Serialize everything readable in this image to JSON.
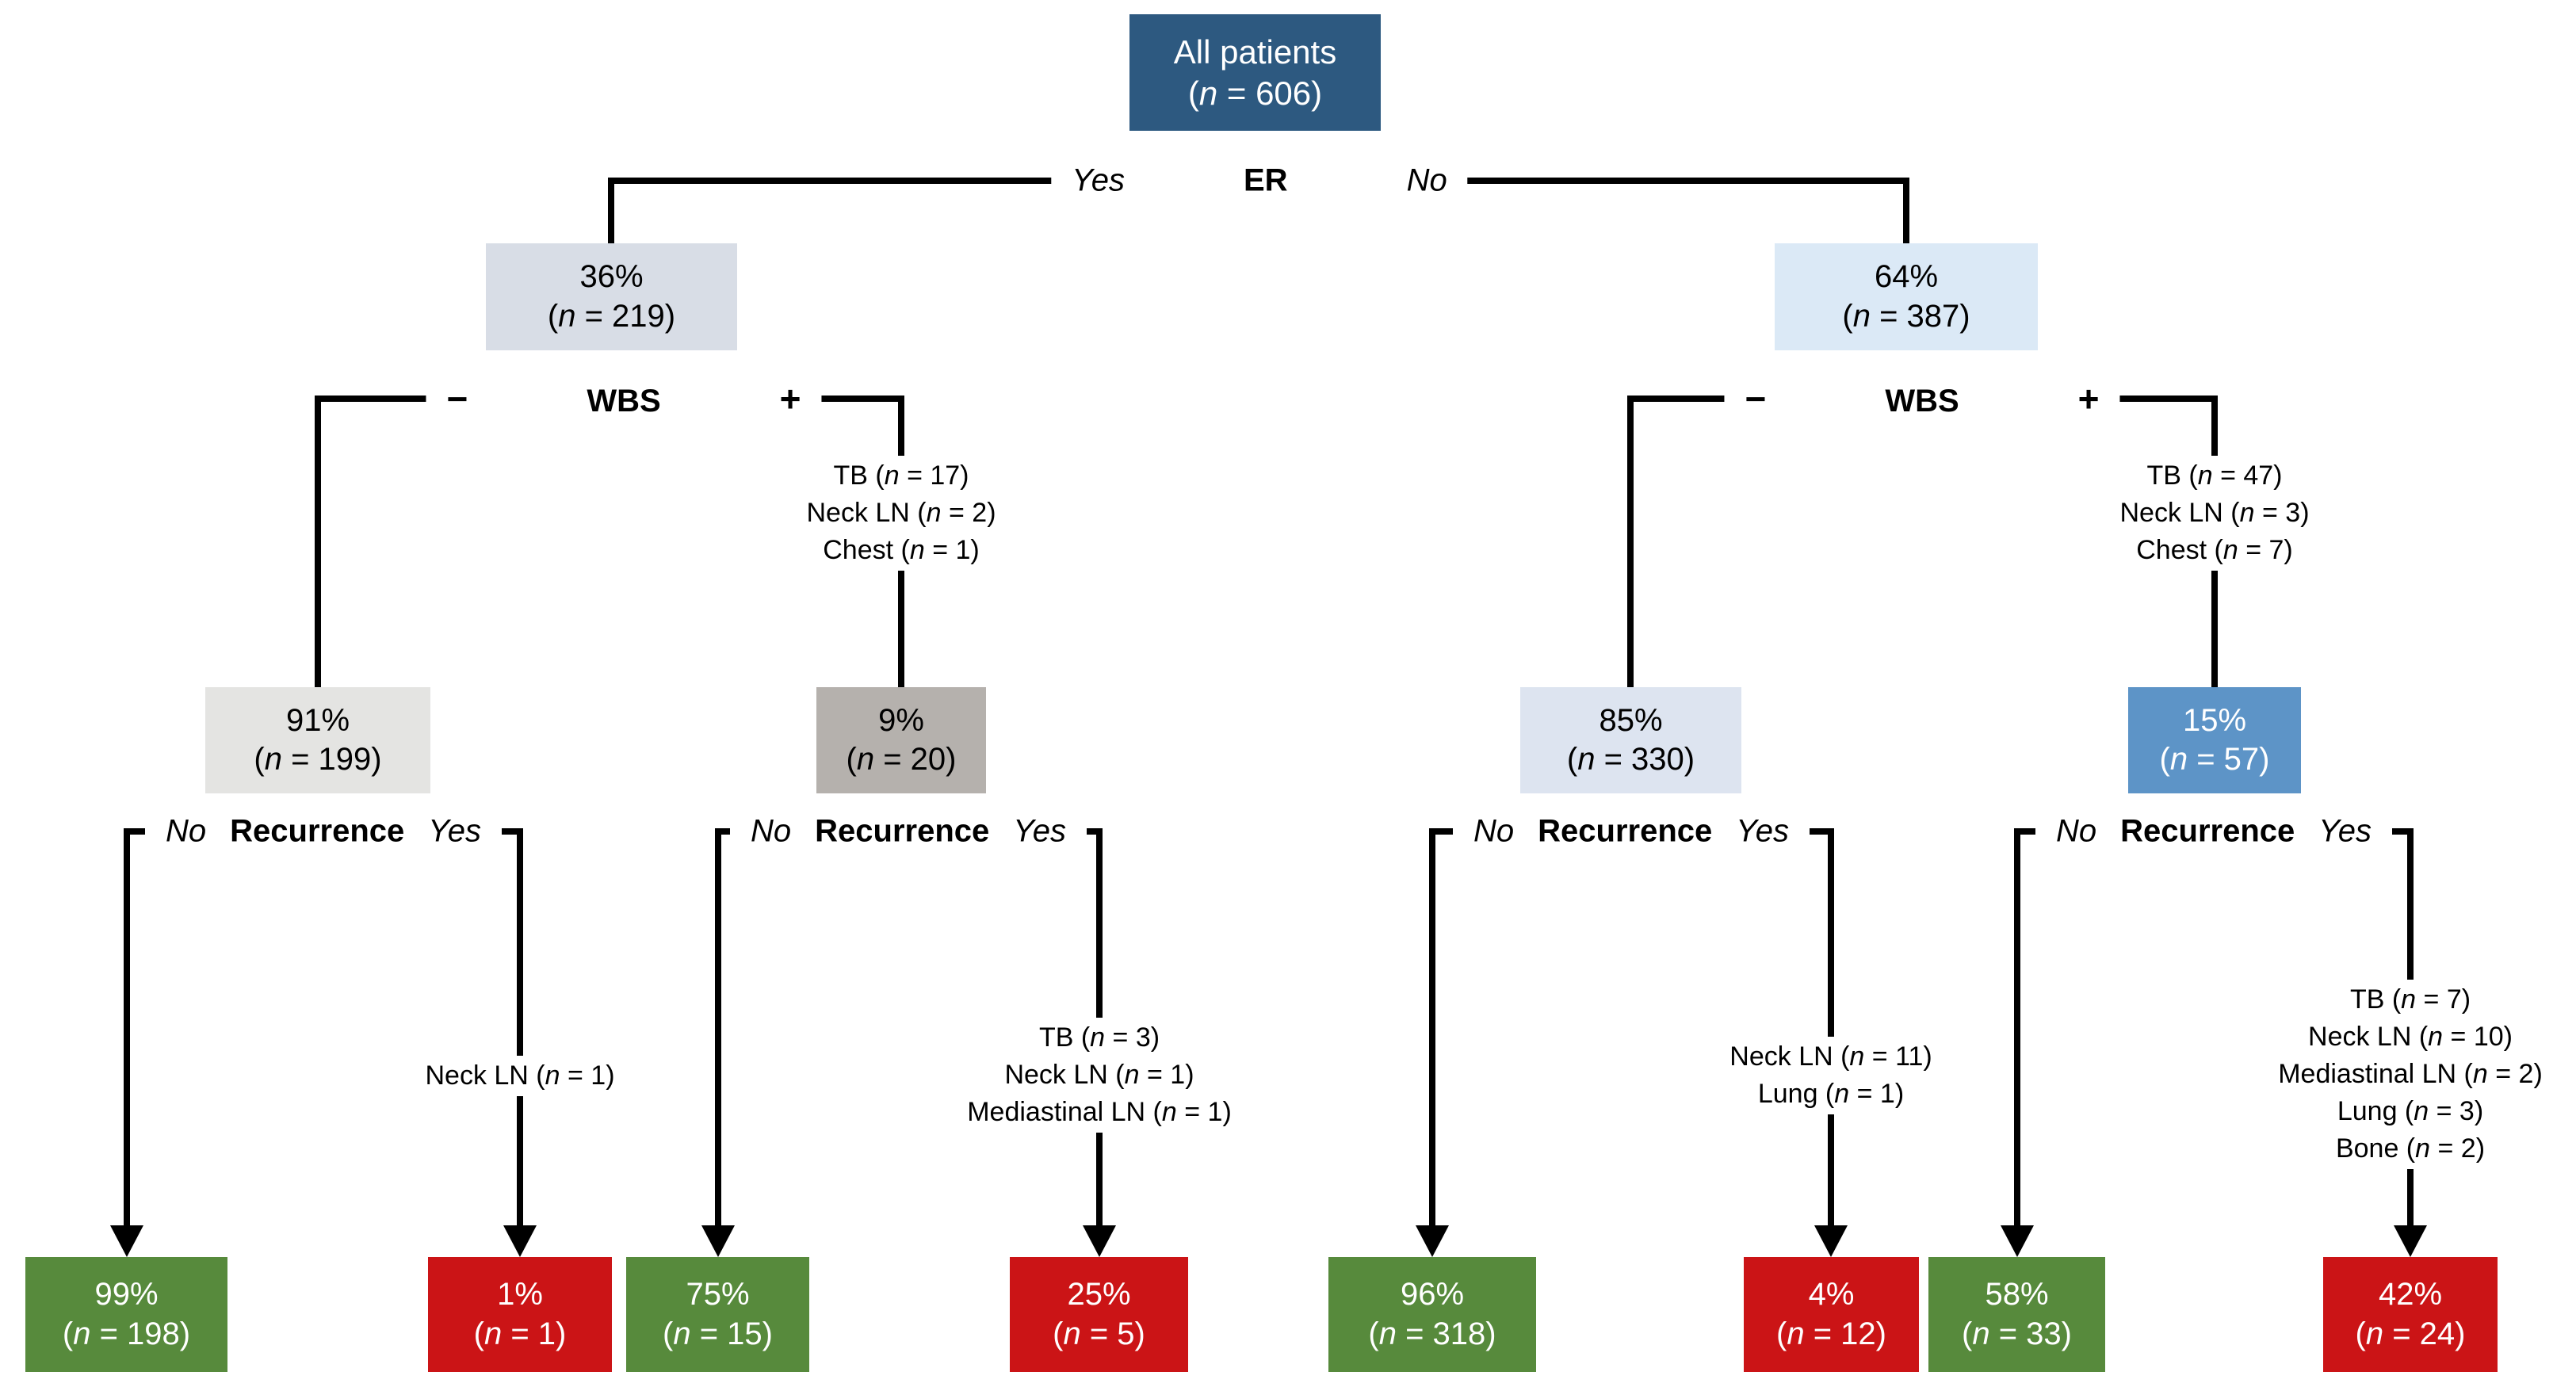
{
  "colors": {
    "root_box": "#2d5980",
    "er_yes_box": "#d8dde6",
    "er_no_box": "#dbe9f6",
    "wbs_negative_left_box": "#e4e4e2",
    "wbs_positive_left_box": "#b5b1ad",
    "wbs_negative_right_box": "#dde4f0",
    "wbs_positive_right_box": "#5d94c7",
    "no_recurrence_box": "#578a3c",
    "recurrence_box": "#cb1416",
    "connector": "#000000"
  },
  "root": {
    "title": "All patients",
    "n": "(n = 606)"
  },
  "splits": {
    "er": {
      "name": "ER",
      "yes": "Yes",
      "no": "No"
    },
    "wbs": {
      "name": "WBS",
      "minus": "−",
      "plus": "+"
    },
    "recurrence": {
      "name": "Recurrence",
      "no": "No",
      "yes": "Yes"
    }
  },
  "level1": [
    {
      "pct": "36%",
      "n": "(n = 219)"
    },
    {
      "pct": "64%",
      "n": "(n = 387)"
    }
  ],
  "level2": [
    {
      "pct": "91%",
      "n": "(n = 199)"
    },
    {
      "pct": "9%",
      "n": "(n = 20)"
    },
    {
      "pct": "85%",
      "n": "(n = 330)"
    },
    {
      "pct": "15%",
      "n": "(n = 57)"
    }
  ],
  "wbs_positive_findings": [
    [
      "TB (n = 17)",
      "Neck LN (n = 2)",
      "Chest (n = 1)"
    ],
    [
      "TB (n = 47)",
      "Neck LN (n = 3)",
      "Chest (n = 7)"
    ]
  ],
  "recurrence_findings": [
    [
      "Neck LN (n = 1)"
    ],
    [
      "TB (n = 3)",
      "Neck LN (n = 1)",
      "Mediastinal LN (n = 1)"
    ],
    [
      "Neck LN (n = 11)",
      "Lung (n = 1)"
    ],
    [
      "TB (n = 7)",
      "Neck LN (n = 10)",
      "Mediastinal LN (n = 2)",
      "Lung (n = 3)",
      "Bone (n = 2)"
    ]
  ],
  "outcomes": [
    {
      "pct": "99%",
      "n": "(n = 198)"
    },
    {
      "pct": "1%",
      "n": "(n = 1)"
    },
    {
      "pct": "75%",
      "n": "(n = 15)"
    },
    {
      "pct": "25%",
      "n": "(n = 5)"
    },
    {
      "pct": "96%",
      "n": "(n = 318)"
    },
    {
      "pct": "4%",
      "n": "(n = 12)"
    },
    {
      "pct": "58%",
      "n": "(n = 33)"
    },
    {
      "pct": "42%",
      "n": "(n = 24)"
    }
  ]
}
